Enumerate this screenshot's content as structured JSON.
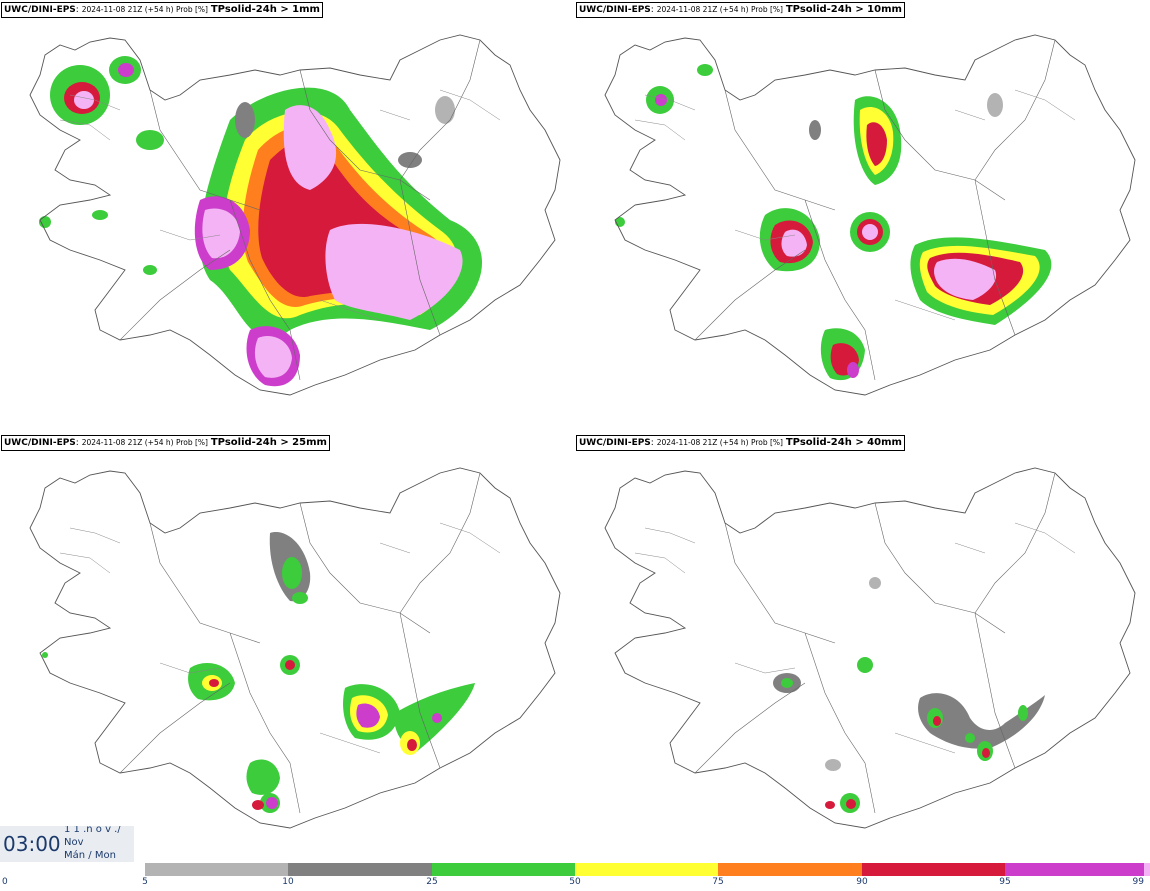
{
  "panels": [
    {
      "model": "UWC/DINI-EPS",
      "meta": "2024-11-08 21Z (+54 h) Prob [%]",
      "variable": "TPsolid-24h > 1mm"
    },
    {
      "model": "UWC/DINI-EPS",
      "meta": "2024-11-08 21Z (+54 h) Prob [%]",
      "variable": "TPsolid-24h > 10mm"
    },
    {
      "model": "UWC/DINI-EPS",
      "meta": "2024-11-08 21Z (+54 h) Prob [%]",
      "variable": "TPsolid-24h > 25mm"
    },
    {
      "model": "UWC/DINI-EPS",
      "meta": "2024-11-08 21Z (+54 h) Prob [%]",
      "variable": "TPsolid-24h > 40mm"
    }
  ],
  "valid_time": {
    "time": "03:00",
    "date_line1": "1 1 .n ó v ./",
    "date_line2": "Nov",
    "date_line3": "Mán / Mon"
  },
  "colorbar": {
    "ticks": [
      "0",
      "5",
      "10",
      "25",
      "50",
      "75",
      "90",
      "95",
      "99"
    ],
    "colors": [
      "#ffffff",
      "#b3b3b3",
      "#808080",
      "#3ccc3c",
      "#ffff33",
      "#ff7f1e",
      "#d61a3c",
      "#cc3dcc",
      "#f4b3f4"
    ]
  }
}
